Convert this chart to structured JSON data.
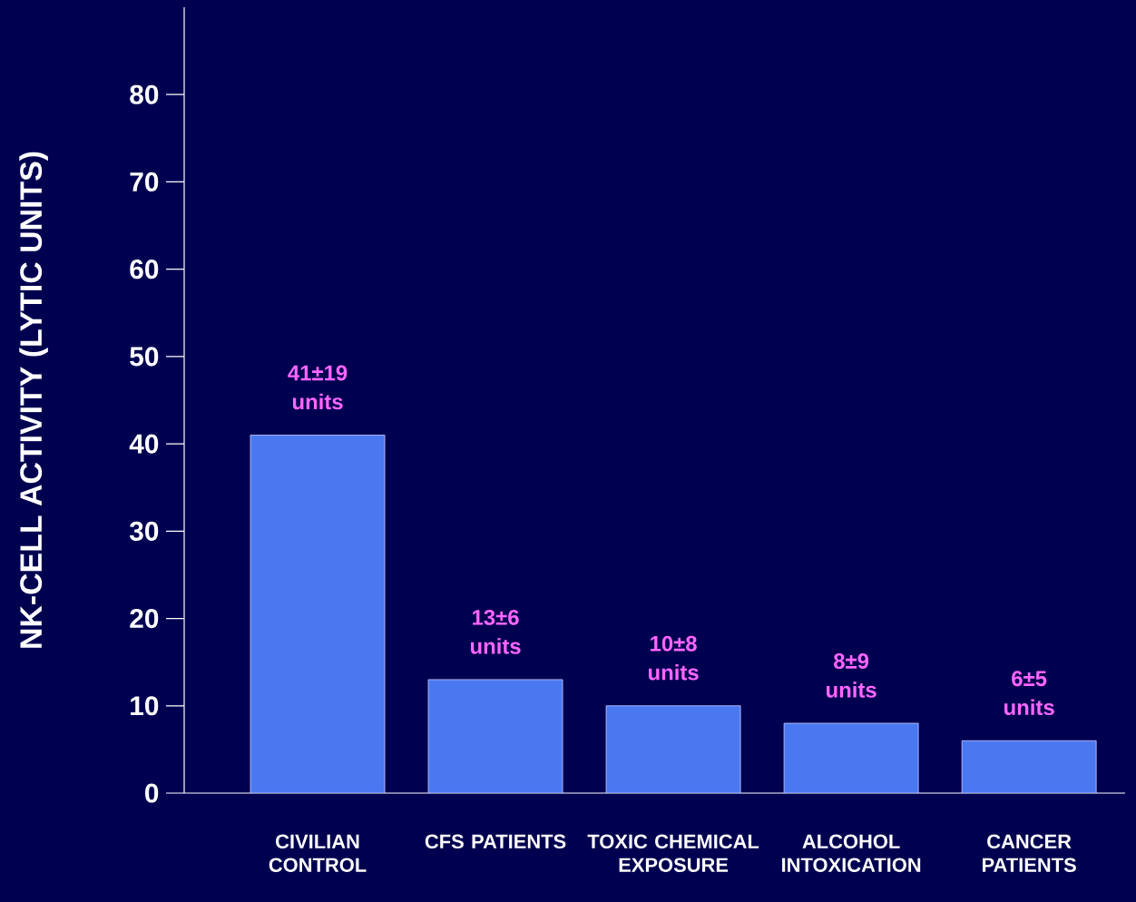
{
  "chart_data": {
    "type": "bar",
    "ylabel": "NK-CELL ACTIVITY (LYTIC UNITS)",
    "categories": [
      "CIVILIAN CONTROL",
      "CFS PATIENTS",
      "TOXIC CHEMICAL EXPOSURE",
      "ALCOHOL INTOXICATION",
      "CANCER PATIENTS"
    ],
    "values": [
      41,
      13,
      10,
      8,
      6
    ],
    "value_labels": [
      "41±19 units",
      "13±6 units",
      "10±8 units",
      "8±9 units",
      "6±5 units"
    ],
    "color": "#4a78f0",
    "ylim": [
      0,
      90
    ],
    "yticks": [
      0,
      10,
      20,
      30,
      40,
      50,
      60,
      70,
      80
    ]
  }
}
